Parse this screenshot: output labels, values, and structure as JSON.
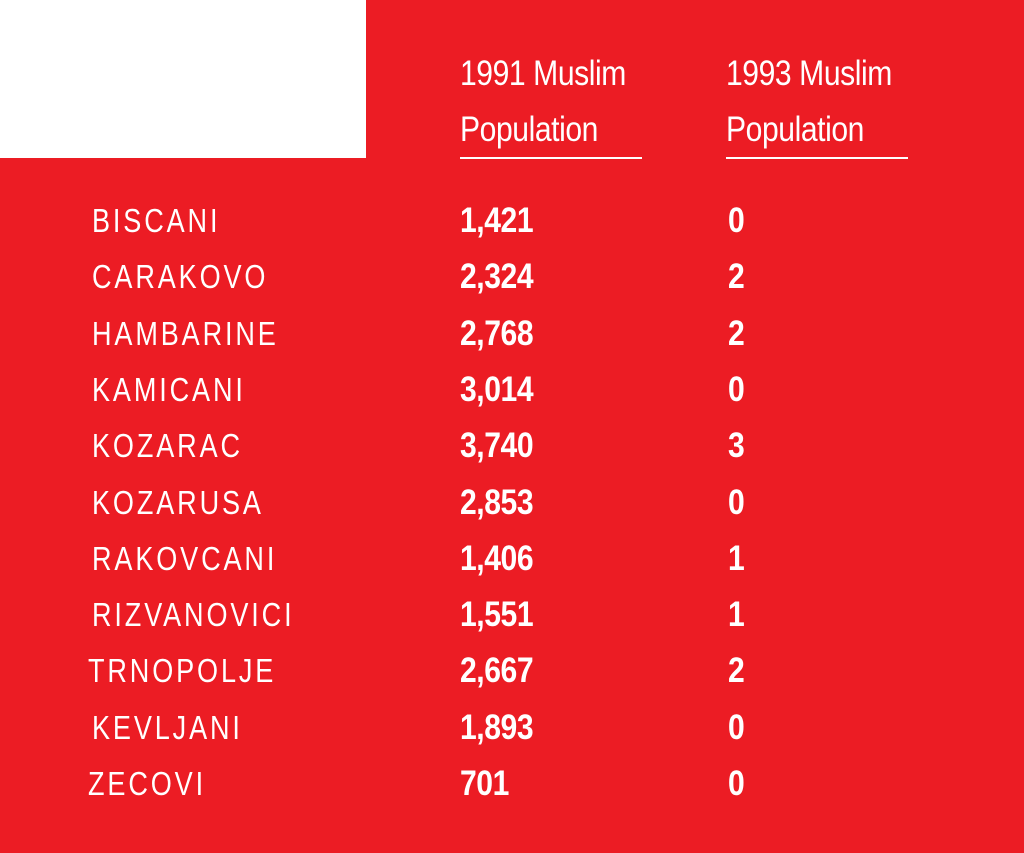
{
  "colors": {
    "background": "#EC1C24",
    "corner_block": "#FFFFFF",
    "text": "#FFFFFF"
  },
  "chart_data": {
    "type": "table",
    "columns": [
      "",
      "1991 Muslim Population",
      "1993 Muslim Population"
    ],
    "header_1991": [
      "1991 Muslim",
      "Population"
    ],
    "header_1993": [
      "1993 Muslim",
      "Population"
    ],
    "rows": [
      {
        "name": "BISCANI",
        "p1991": "1,421",
        "p1993": "0"
      },
      {
        "name": "CARAKOVO",
        "p1991": "2,324",
        "p1993": "2"
      },
      {
        "name": "HAMBARINE",
        "p1991": "2,768",
        "p1993": "2"
      },
      {
        "name": "KAMICANI",
        "p1991": "3,014",
        "p1993": "0"
      },
      {
        "name": "KOZARAC",
        "p1991": "3,740",
        "p1993": "3"
      },
      {
        "name": "KOZARUSA",
        "p1991": "2,853",
        "p1993": "0"
      },
      {
        "name": "RAKOVCANI",
        "p1991": "1,406",
        "p1993": "1"
      },
      {
        "name": "RIZVANOVICI",
        "p1991": "1,551",
        "p1993": "1"
      },
      {
        "name": "TRNOPOLJE",
        "p1991": "2,667",
        "p1993": "2"
      },
      {
        "name": "KEVLJANI",
        "p1991": "1,893",
        "p1993": "0"
      },
      {
        "name": "ZECOVI",
        "p1991": "701",
        "p1993": "0"
      }
    ]
  }
}
